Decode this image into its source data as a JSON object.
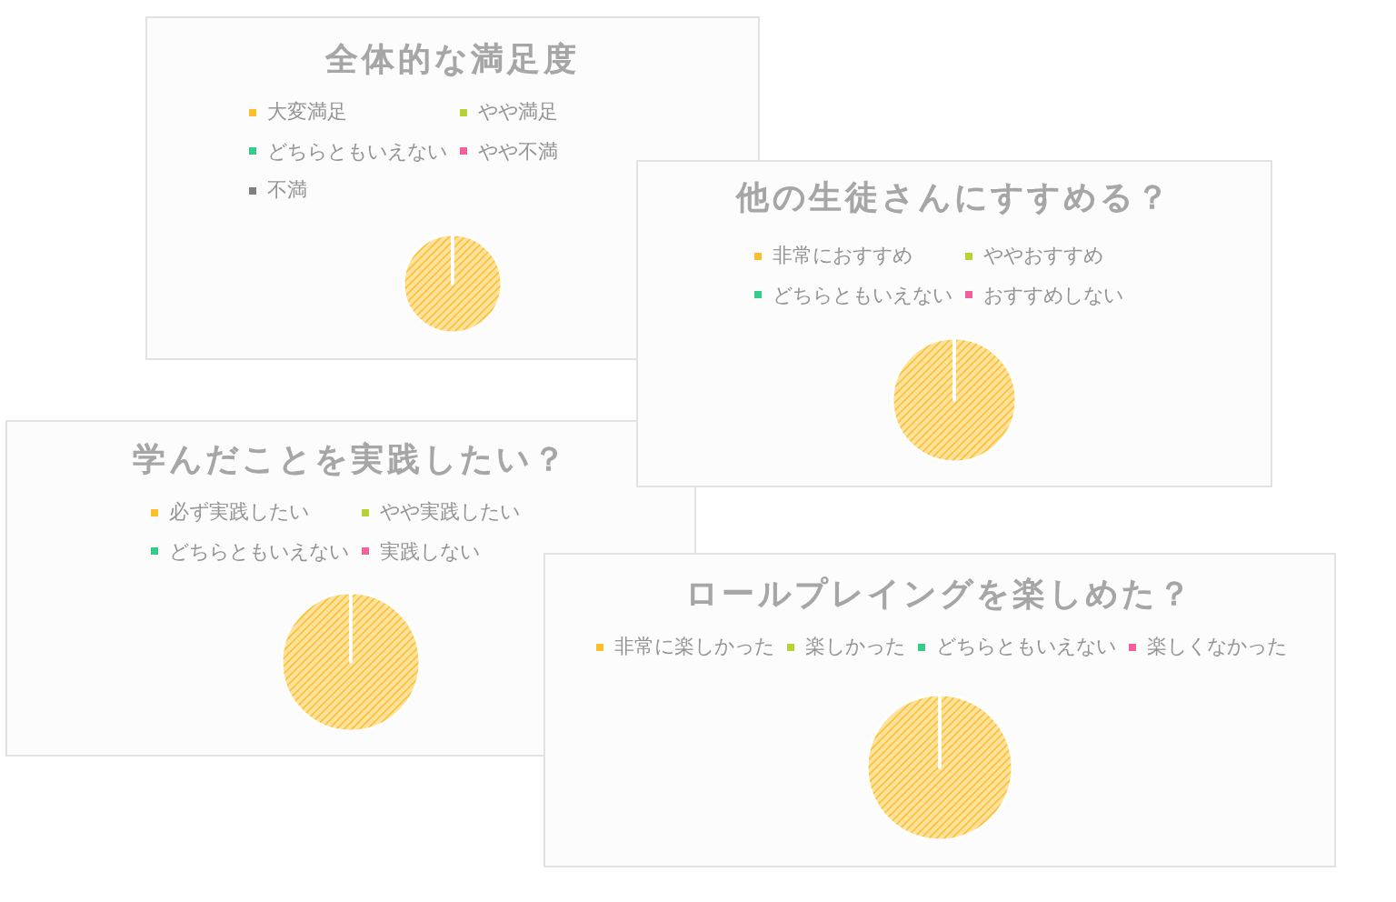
{
  "chart_data": [
    {
      "type": "pie",
      "title": "全体的な満足度",
      "categories": [
        "大変満足",
        "やや満足",
        "どちらともいえない",
        "やや不満",
        "不満"
      ],
      "values": [
        100,
        0,
        0,
        0,
        0
      ],
      "colors": [
        "#fbbf2d",
        "#b5d334",
        "#33cc88",
        "#f2609c",
        "#808080"
      ],
      "legend": "top"
    },
    {
      "type": "pie",
      "title": "他の生徒さんにすすめる？",
      "categories": [
        "非常におすすめ",
        "ややおすすめ",
        "どちらともいえない",
        "おすすめしない"
      ],
      "values": [
        100,
        0,
        0,
        0
      ],
      "colors": [
        "#fbbf2d",
        "#b5d334",
        "#33cc88",
        "#f2609c"
      ],
      "legend": "top"
    },
    {
      "type": "pie",
      "title": "学んだことを実践したい？",
      "categories": [
        "必ず実践したい",
        "やや実践したい",
        "どちらともいえない",
        "実践しない"
      ],
      "values": [
        100,
        0,
        0,
        0
      ],
      "colors": [
        "#fbbf2d",
        "#b5d334",
        "#33cc88",
        "#f2609c"
      ],
      "legend": "top"
    },
    {
      "type": "pie",
      "title": "ロールプレイングを楽しめた？",
      "categories": [
        "非常に楽しかった",
        "楽しかった",
        "どちらともいえない",
        "楽しくなかった"
      ],
      "values": [
        100,
        0,
        0,
        0
      ],
      "colors": [
        "#fbbf2d",
        "#b5d334",
        "#33cc88",
        "#f2609c"
      ],
      "legend": "top"
    }
  ]
}
